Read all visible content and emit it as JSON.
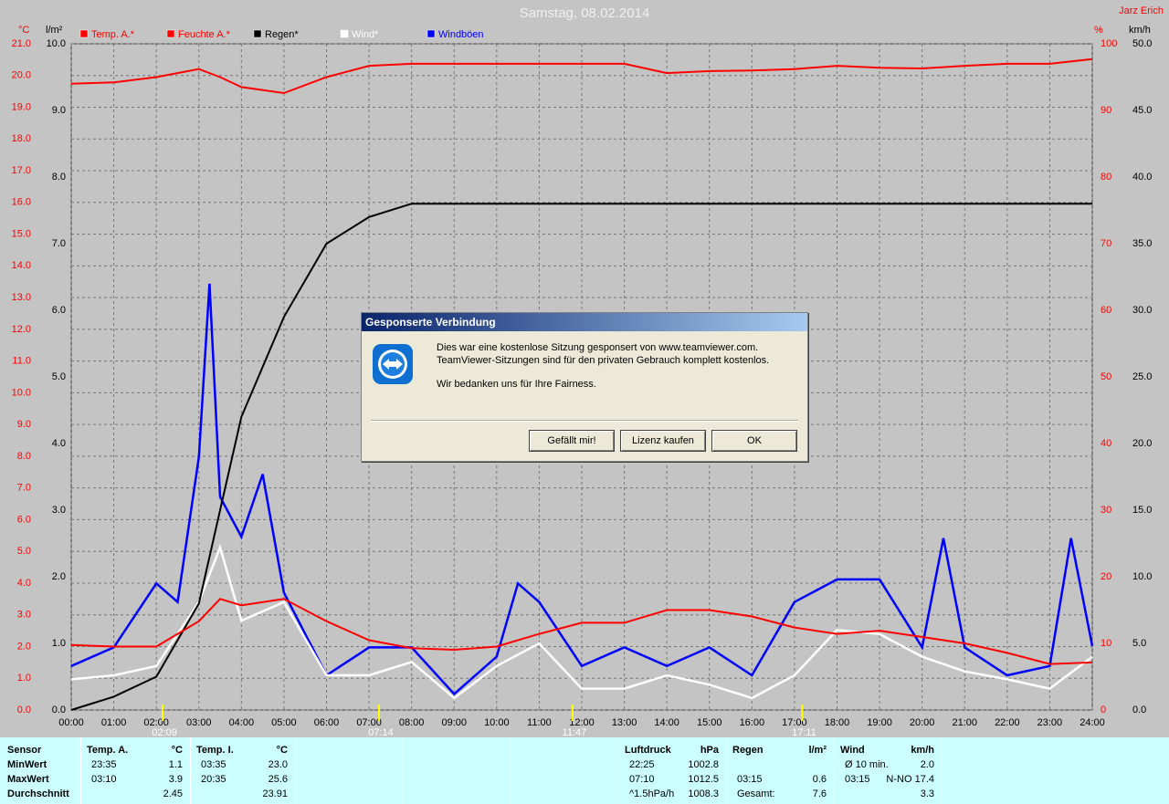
{
  "chart_data": {
    "type": "line",
    "title": "Samstag, 08.02.2014",
    "author": "Jarz Erich",
    "axis_units": {
      "y": "°C",
      "y2": "l/m²",
      "y3": "%",
      "y4": "km/h"
    },
    "xlim": [
      0,
      24
    ],
    "xticks": [
      {
        "value": 0,
        "label": "00:00"
      },
      {
        "value": 1,
        "label": "01:00"
      },
      {
        "value": 2,
        "label": "02:00"
      },
      {
        "value": 3,
        "label": "03:00"
      },
      {
        "value": 4,
        "label": "04:00"
      },
      {
        "value": 5,
        "label": "05:00"
      },
      {
        "value": 6,
        "label": "06:00"
      },
      {
        "value": 7,
        "label": "07:00"
      },
      {
        "value": 8,
        "label": "08:00"
      },
      {
        "value": 9,
        "label": "09:00"
      },
      {
        "value": 10,
        "label": "10:00"
      },
      {
        "value": 11,
        "label": "11:00"
      },
      {
        "value": 12,
        "label": "12:00"
      },
      {
        "value": 13,
        "label": "13:00"
      },
      {
        "value": 14,
        "label": "14:00"
      },
      {
        "value": 15,
        "label": "15:00"
      },
      {
        "value": 16,
        "label": "16:00"
      },
      {
        "value": 17,
        "label": "17:00"
      },
      {
        "value": 18,
        "label": "18:00"
      },
      {
        "value": 19,
        "label": "19:00"
      },
      {
        "value": 20,
        "label": "20:00"
      },
      {
        "value": 21,
        "label": "21:00"
      },
      {
        "value": 22,
        "label": "22:00"
      },
      {
        "value": 23,
        "label": "23:00"
      },
      {
        "value": 24,
        "label": "24:00"
      }
    ],
    "ylim": [
      0,
      21
    ],
    "yticks": [
      {
        "value": 0,
        "label": "0.0"
      },
      {
        "value": 1,
        "label": "1.0"
      },
      {
        "value": 2,
        "label": "2.0"
      },
      {
        "value": 3,
        "label": "3.0"
      },
      {
        "value": 4,
        "label": "4.0"
      },
      {
        "value": 5,
        "label": "5.0"
      },
      {
        "value": 6,
        "label": "6.0"
      },
      {
        "value": 7,
        "label": "7.0"
      },
      {
        "value": 8,
        "label": "8.0"
      },
      {
        "value": 9,
        "label": "9.0"
      },
      {
        "value": 10,
        "label": "10.0"
      },
      {
        "value": 11,
        "label": "11.0"
      },
      {
        "value": 12,
        "label": "12.0"
      },
      {
        "value": 13,
        "label": "13.0"
      },
      {
        "value": 14,
        "label": "14.0"
      },
      {
        "value": 15,
        "label": "15.0"
      },
      {
        "value": 16,
        "label": "16.0"
      },
      {
        "value": 17,
        "label": "17.0"
      },
      {
        "value": 18,
        "label": "18.0"
      },
      {
        "value": 19,
        "label": "19.0"
      },
      {
        "value": 20,
        "label": "20.0"
      },
      {
        "value": 21,
        "label": "21.0"
      }
    ],
    "y2lim": [
      0,
      10
    ],
    "y2ticks": [
      {
        "value": 0,
        "label": "0.0"
      },
      {
        "value": 1,
        "label": "1.0"
      },
      {
        "value": 2,
        "label": "2.0"
      },
      {
        "value": 3,
        "label": "3.0"
      },
      {
        "value": 4,
        "label": "4.0"
      },
      {
        "value": 5,
        "label": "5.0"
      },
      {
        "value": 6,
        "label": "6.0"
      },
      {
        "value": 7,
        "label": "7.0"
      },
      {
        "value": 8,
        "label": "8.0"
      },
      {
        "value": 9,
        "label": "9.0"
      },
      {
        "value": 10,
        "label": "10.0"
      }
    ],
    "y3lim": [
      0,
      100
    ],
    "y3ticks": [
      0,
      10,
      20,
      30,
      40,
      50,
      60,
      70,
      80,
      90,
      100
    ],
    "y4lim": [
      0,
      50
    ],
    "y4ticks": [
      {
        "value": 0,
        "label": "0.0"
      },
      {
        "value": 5,
        "label": "5.0"
      },
      {
        "value": 10,
        "label": "10.0"
      },
      {
        "value": 15,
        "label": "15.0"
      },
      {
        "value": 20,
        "label": "20.0"
      },
      {
        "value": 25,
        "label": "25.0"
      },
      {
        "value": 30,
        "label": "30.0"
      },
      {
        "value": 35,
        "label": "35.0"
      },
      {
        "value": 40,
        "label": "40.0"
      },
      {
        "value": 45,
        "label": "45.0"
      },
      {
        "value": 50,
        "label": "50.0"
      }
    ],
    "grid": true,
    "series": [
      {
        "name": "Temp. A.*",
        "color": "#ff0000",
        "axis": "y",
        "x": [
          0,
          1,
          2,
          3,
          3.5,
          4,
          5,
          6,
          7,
          8,
          9,
          10,
          11,
          12,
          13,
          14,
          15,
          16,
          17,
          18,
          19,
          20,
          21,
          22,
          23,
          24
        ],
        "values": [
          2.05,
          2.0,
          2.0,
          2.8,
          3.5,
          3.3,
          3.5,
          2.8,
          2.2,
          1.95,
          1.9,
          2.0,
          2.4,
          2.75,
          2.75,
          3.15,
          3.15,
          2.95,
          2.6,
          2.4,
          2.5,
          2.3,
          2.1,
          1.8,
          1.45,
          1.5
        ]
      },
      {
        "name": "Feuchte A.*",
        "color": "#ff0000",
        "axis": "y3",
        "x": [
          0,
          1,
          2,
          3,
          3.5,
          4,
          5,
          6,
          7,
          8,
          9,
          10,
          11,
          12,
          13,
          14,
          15,
          16,
          17,
          18,
          19,
          20,
          21,
          22,
          23,
          24
        ],
        "values": [
          94,
          94.2,
          95,
          96.2,
          95,
          93.5,
          92.6,
          95,
          96.7,
          97,
          97,
          97,
          97,
          97,
          97,
          95.6,
          95.9,
          96,
          96.2,
          96.7,
          96.4,
          96.3,
          96.7,
          97,
          97,
          97.7
        ]
      },
      {
        "name": "Regen*",
        "color": "#000000",
        "axis": "y2",
        "x": [
          0,
          1,
          2,
          3,
          3.5,
          4,
          5,
          6,
          7,
          8,
          9,
          10,
          11,
          12,
          13,
          14,
          15,
          16,
          17,
          18,
          19,
          20,
          21,
          22,
          23,
          24
        ],
        "values": [
          0,
          0.2,
          0.5,
          1.6,
          3.0,
          4.4,
          5.9,
          7.0,
          7.4,
          7.6,
          7.6,
          7.6,
          7.6,
          7.6,
          7.6,
          7.6,
          7.6,
          7.6,
          7.6,
          7.6,
          7.6,
          7.6,
          7.6,
          7.6,
          7.6,
          7.6
        ]
      },
      {
        "name": "Wind*",
        "color": "#ffffff",
        "axis": "y4",
        "x": [
          0,
          1,
          2,
          3,
          3.5,
          4,
          5,
          6,
          7,
          8,
          9,
          10,
          11,
          12,
          13,
          14,
          15,
          16,
          17,
          18,
          19,
          20,
          21,
          22,
          23,
          24
        ],
        "values": [
          2.3,
          2.6,
          3.3,
          8.1,
          12.2,
          6.7,
          8.1,
          2.6,
          2.6,
          3.6,
          0.9,
          3.3,
          5.0,
          1.6,
          1.6,
          2.6,
          1.9,
          0.9,
          2.6,
          6.0,
          5.7,
          4.0,
          2.9,
          2.3,
          1.6,
          4.0
        ]
      },
      {
        "name": "Windböen",
        "color": "#0000ff",
        "axis": "y4",
        "x": [
          0,
          1,
          2,
          2.5,
          3,
          3.25,
          3.5,
          4,
          4.5,
          5,
          6,
          7,
          8,
          9,
          10,
          10.5,
          11,
          12,
          13,
          14,
          15,
          16,
          17,
          18,
          19,
          20,
          20.5,
          21,
          22,
          23,
          23.5,
          24
        ],
        "values": [
          3.3,
          4.7,
          9.5,
          8.1,
          19.0,
          32,
          16,
          13,
          17.7,
          8.8,
          2.6,
          4.7,
          4.7,
          1.2,
          4.0,
          9.5,
          8.1,
          3.3,
          4.7,
          3.3,
          4.7,
          2.6,
          8.1,
          9.8,
          9.8,
          4.7,
          12.9,
          4.7,
          2.6,
          3.3,
          12.9,
          4.8
        ]
      }
    ],
    "markers": [
      {
        "value": 2.15,
        "label": "02:09"
      },
      {
        "value": 7.233,
        "label": "07:14"
      },
      {
        "value": 11.783,
        "label": "11:47"
      },
      {
        "value": 17.183,
        "label": "17:11"
      }
    ]
  },
  "stats": {
    "labels": [
      "Sensor",
      "MinWert",
      "MaxWert",
      "Durchschnitt"
    ],
    "panels": [
      {
        "title": "Temp. A.",
        "unit": "°C",
        "rows": [
          [
            "23:35",
            "1.1"
          ],
          [
            "03:10",
            "3.9"
          ],
          [
            "2.45"
          ]
        ]
      },
      {
        "title": "Temp. I.",
        "unit": "°C",
        "rows": [
          [
            "03:35",
            "23.0"
          ],
          [
            "20:35",
            "25.6"
          ],
          [
            "23.91"
          ]
        ]
      },
      {
        "title": "Luftdruck",
        "unit": "hPa",
        "rows": [
          [
            "22:25",
            "1002.8"
          ],
          [
            "07:10",
            "1012.5"
          ],
          [
            "^1.5hPa/h",
            "1008.3"
          ]
        ]
      },
      {
        "title": "Regen",
        "unit": "l/m²",
        "rows": [
          [],
          [
            "03:15",
            "0.6"
          ],
          [
            "Gesamt:",
            "7.6"
          ]
        ]
      },
      {
        "title": "Wind",
        "unit": "km/h",
        "rows": [
          [
            "Ø 10 min.",
            "2.0"
          ],
          [
            "03:15",
            "N-NO 17.4"
          ],
          [
            "3.3"
          ]
        ]
      }
    ]
  },
  "dialog": {
    "title": "Gesponserte Verbindung",
    "lines": [
      "Dies war eine kostenlose Sitzung gesponsert von www.teamviewer.com.",
      "TeamViewer-Sitzungen sind für den privaten Gebrauch komplett kostenlos.",
      "Wir bedanken uns für Ihre Fairness."
    ],
    "buttons": [
      "Gefällt mir!",
      "Lizenz kaufen",
      "OK"
    ]
  }
}
